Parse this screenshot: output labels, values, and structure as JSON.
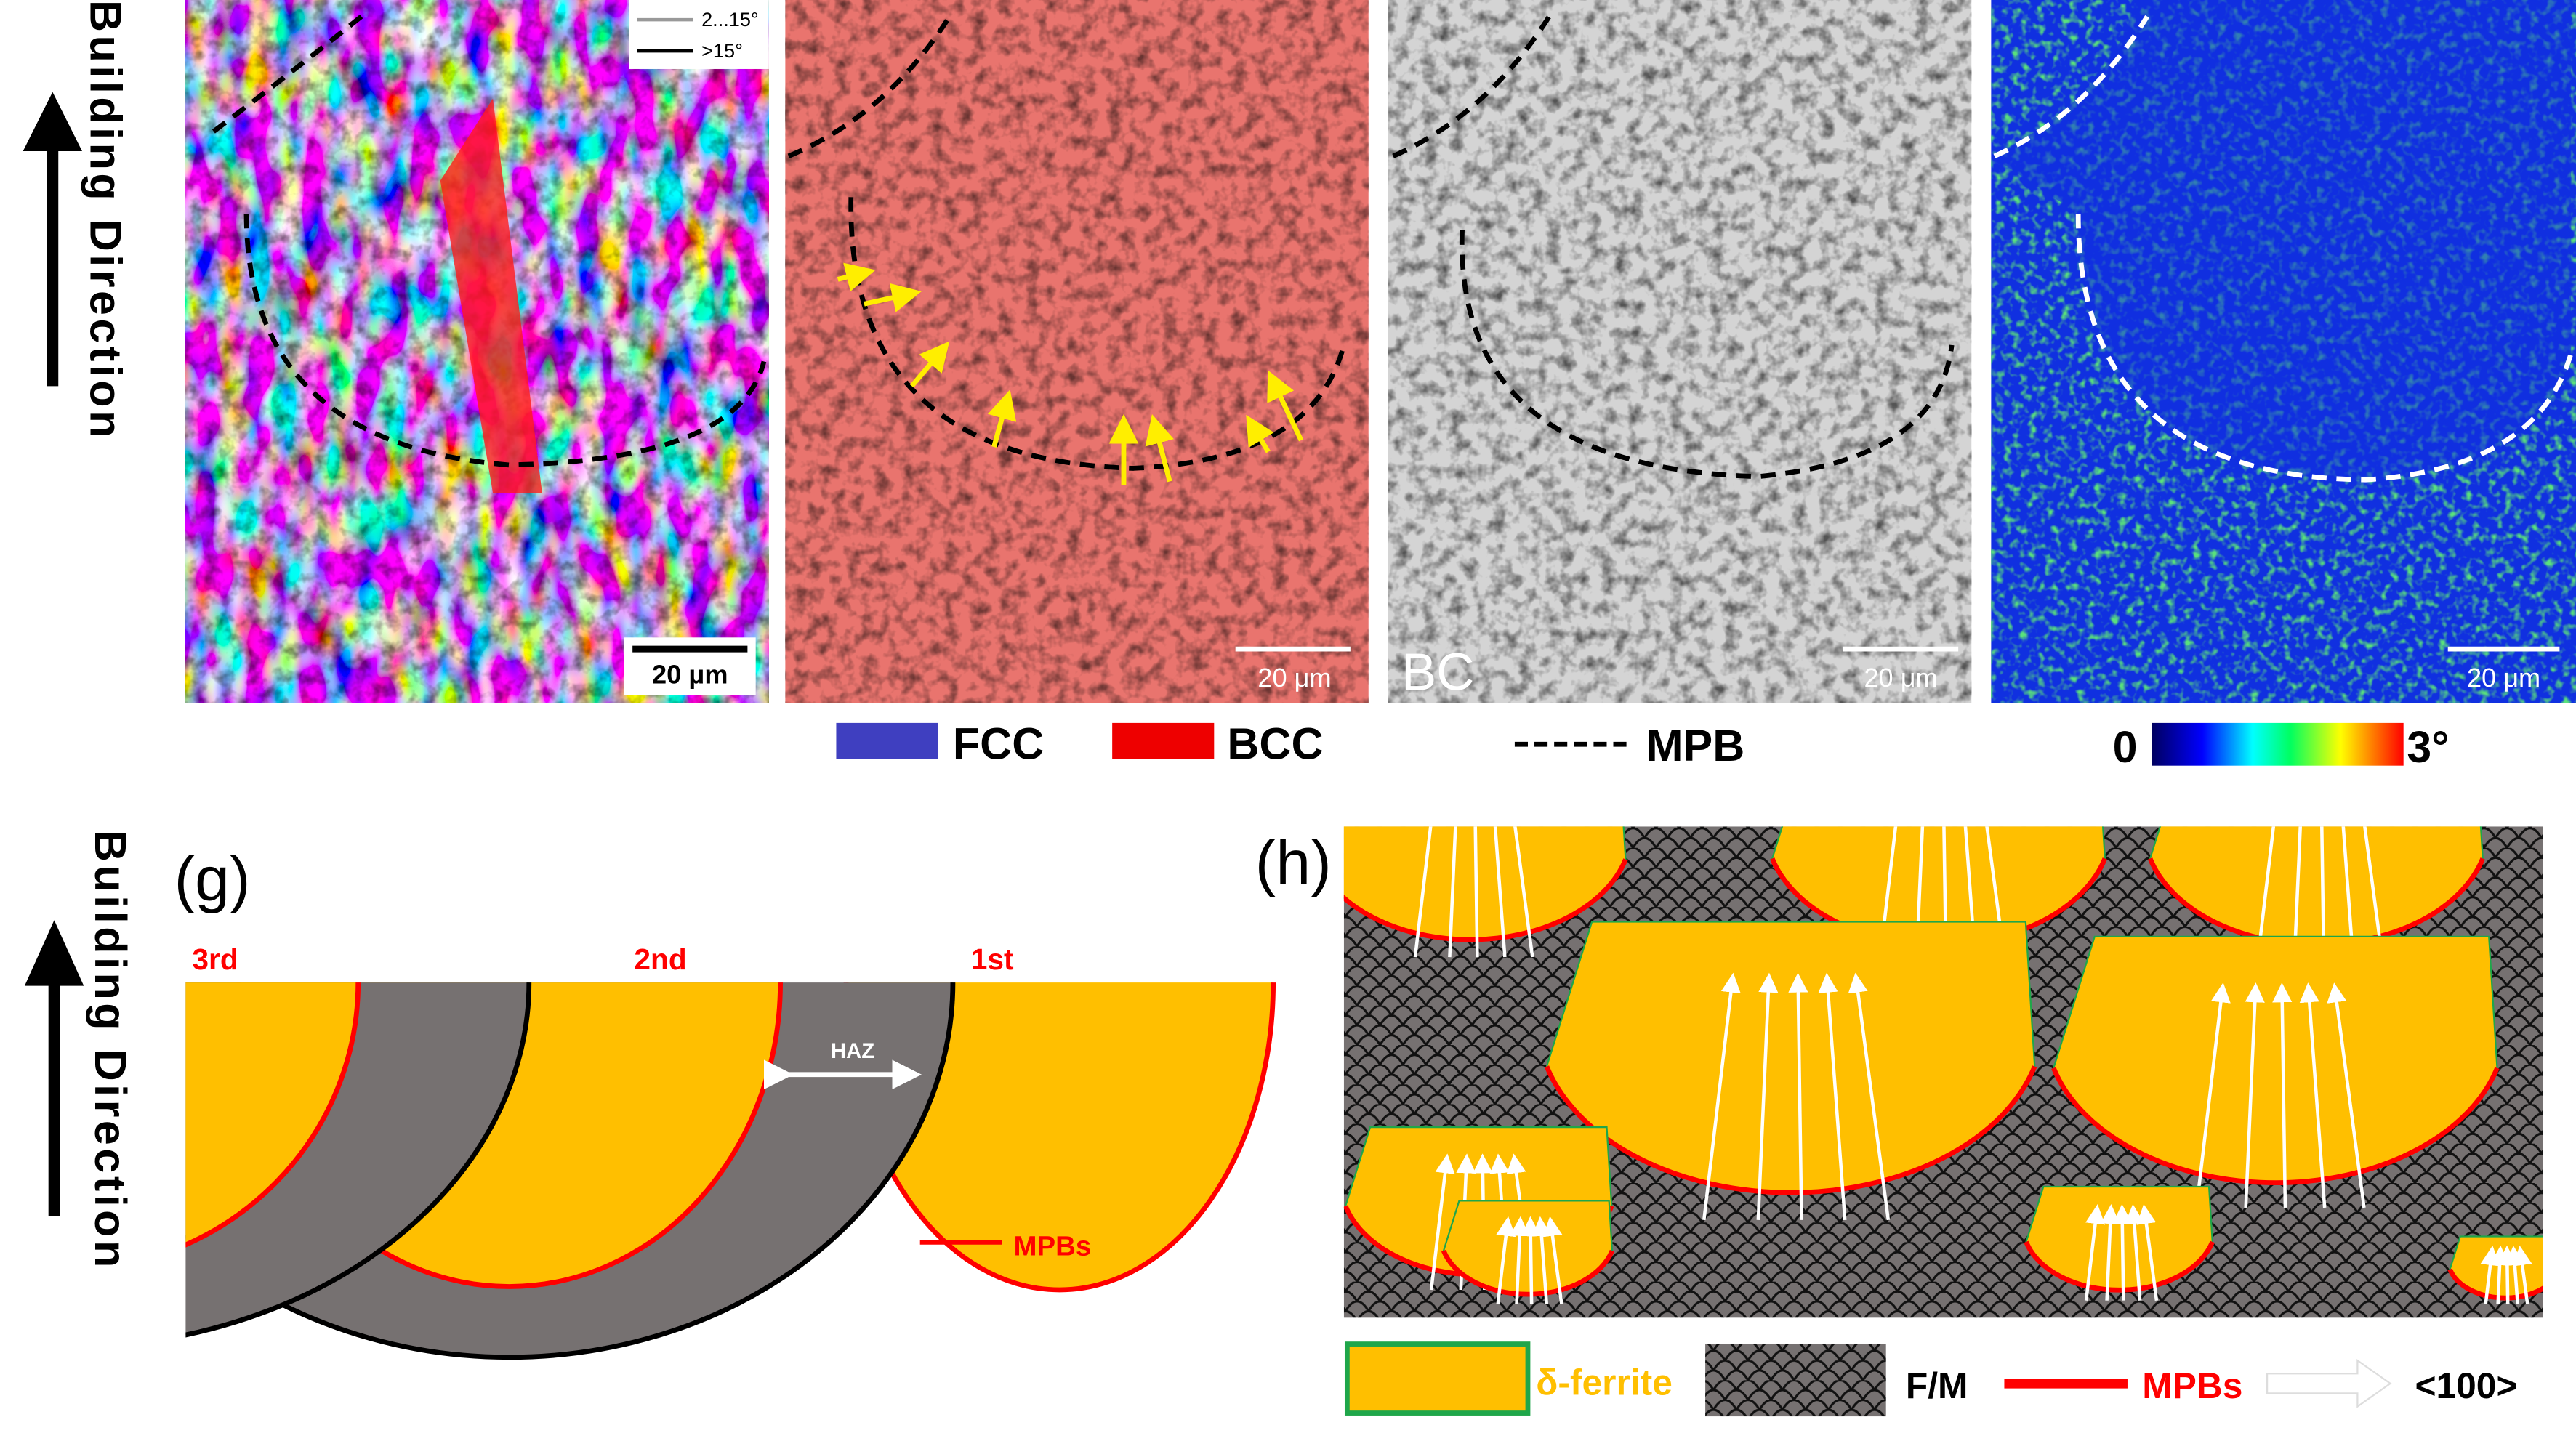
{
  "building_direction_label": "Building Direction",
  "panel_a": {
    "legend": [
      {
        "label": "2...15°",
        "color": "#999999"
      },
      {
        "label": ">15°",
        "color": "#000000"
      }
    ],
    "scale_bar": "20 μm"
  },
  "panel_b": {
    "scale_bar": "20 μm"
  },
  "panel_c": {
    "label": "BC",
    "scale_bar": "20 μm"
  },
  "panel_d": {
    "scale_bar": "20 μm"
  },
  "legend_row": {
    "fcc": {
      "label": "FCC",
      "color": "#3f3fc0"
    },
    "bcc": {
      "label": "BCC",
      "color": "#ee0000"
    },
    "mpb": {
      "label": "MPB"
    },
    "colorbar": {
      "min": "0",
      "max": "3°",
      "colors": [
        "#000060",
        "#0000ff",
        "#00ffff",
        "#00ff60",
        "#ffff00",
        "#ff0000"
      ]
    }
  },
  "panel_g": {
    "label": "(g)",
    "layers": [
      "3rd",
      "2nd",
      "1st"
    ],
    "haz": "HAZ",
    "mpbs": "MPBs",
    "colors": {
      "pool": "#ffbf00",
      "haz": "#767171",
      "mpb": "#ff0000"
    }
  },
  "panel_h": {
    "label": "(h)",
    "legend": {
      "delta_ferrite": "δ-ferrite",
      "fm": "F/M",
      "mpbs": "MPBs",
      "direction": "<100>"
    }
  }
}
